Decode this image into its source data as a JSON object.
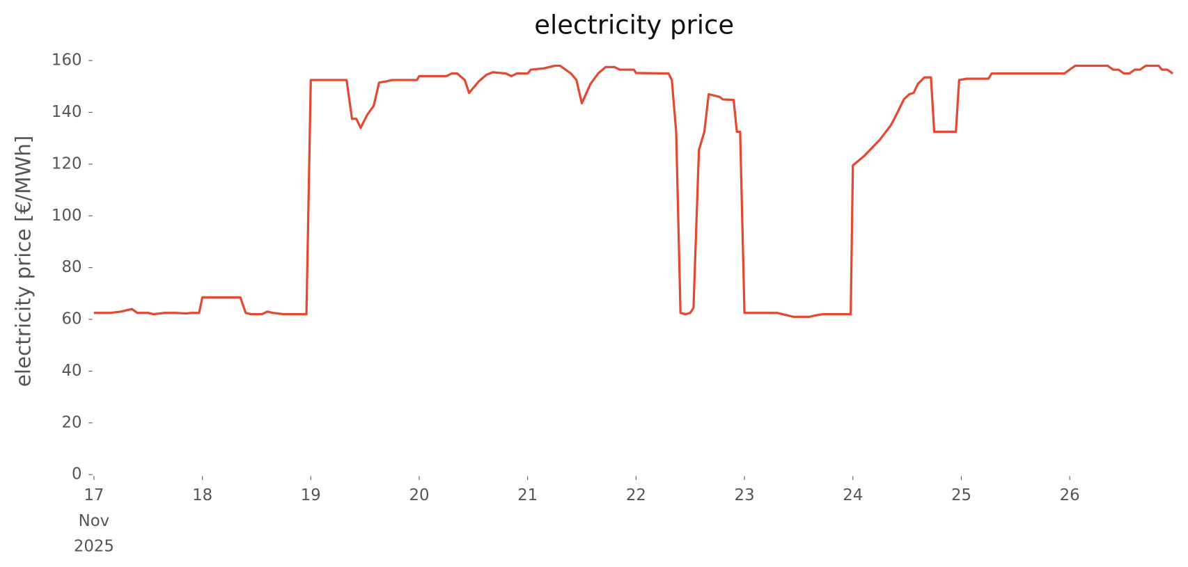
{
  "chart_data": {
    "type": "line",
    "title": "electricity price",
    "y_label": "electricity price [€/MWh]",
    "x": [
      17.0,
      17.15,
      17.25,
      17.35,
      17.4,
      17.5,
      17.55,
      17.65,
      17.75,
      17.85,
      17.9,
      17.97,
      18.0,
      18.05,
      18.35,
      18.4,
      18.45,
      18.55,
      18.6,
      18.65,
      18.75,
      18.96,
      19.0,
      19.33,
      19.38,
      19.42,
      19.46,
      19.52,
      19.58,
      19.63,
      19.7,
      19.75,
      19.98,
      20.0,
      20.25,
      20.3,
      20.35,
      20.42,
      20.46,
      20.55,
      20.62,
      20.68,
      20.8,
      20.85,
      20.9,
      21.0,
      21.03,
      21.15,
      21.25,
      21.3,
      21.4,
      21.45,
      21.5,
      21.58,
      21.65,
      21.72,
      21.8,
      21.85,
      21.98,
      22.0,
      22.3,
      22.33,
      22.37,
      22.41,
      22.46,
      22.5,
      22.53,
      22.58,
      22.63,
      22.67,
      22.72,
      22.77,
      22.8,
      22.9,
      22.93,
      22.96,
      23.0,
      23.3,
      23.4,
      23.45,
      23.6,
      23.65,
      23.72,
      23.98,
      24.0,
      24.1,
      24.17,
      24.25,
      24.35,
      24.4,
      24.47,
      24.52,
      24.56,
      24.6,
      24.66,
      24.72,
      24.75,
      24.95,
      24.98,
      25.05,
      25.25,
      25.28,
      25.95,
      26.0,
      26.05,
      26.35,
      26.4,
      26.45,
      26.5,
      26.55,
      26.6,
      26.65,
      26.7,
      26.82,
      26.85,
      26.9,
      26.95
    ],
    "series": [
      {
        "name": "electricity price",
        "color": "#e24a33",
        "values": [
          62.5,
          62.5,
          63,
          64,
          62.5,
          62.5,
          62,
          62.5,
          62.5,
          62.3,
          62.5,
          62.5,
          68.5,
          68.5,
          68.5,
          62.5,
          62,
          62,
          63,
          62.5,
          62,
          62,
          152.5,
          152.5,
          137.5,
          137.5,
          134,
          139,
          142.5,
          151.5,
          152,
          152.5,
          152.5,
          154,
          154,
          155,
          155,
          152.5,
          147.5,
          152,
          154.5,
          155.5,
          155,
          154,
          155,
          155,
          156.5,
          157,
          158,
          158,
          155,
          152.5,
          143.5,
          151,
          155,
          157.5,
          157.5,
          156.5,
          156.5,
          155.2,
          155,
          152.5,
          132.5,
          62.5,
          62,
          62.5,
          64.5,
          125.5,
          132.5,
          147,
          146.5,
          146,
          145,
          144.8,
          132.5,
          132.5,
          62.5,
          62.5,
          61.5,
          61,
          61,
          61.5,
          62,
          62,
          119.5,
          123,
          126,
          129.5,
          135,
          139,
          145,
          147,
          147.5,
          151,
          153.5,
          153.5,
          132.5,
          132.5,
          152.5,
          153,
          153,
          155,
          155,
          156.5,
          158,
          158,
          156.5,
          156.5,
          155,
          155,
          156.5,
          156.5,
          158,
          158,
          156.5,
          156.5,
          155
        ]
      }
    ],
    "xlim": [
      17,
      26.958
    ],
    "xticks": [
      {
        "value": 17,
        "label": "17\nNov\n2025"
      },
      18,
      19,
      20,
      21,
      22,
      23,
      24,
      25,
      26
    ],
    "ylim": [
      0,
      160
    ],
    "yticks": [
      0,
      20,
      40,
      60,
      80,
      100,
      120,
      140,
      160
    ],
    "grid": false
  }
}
